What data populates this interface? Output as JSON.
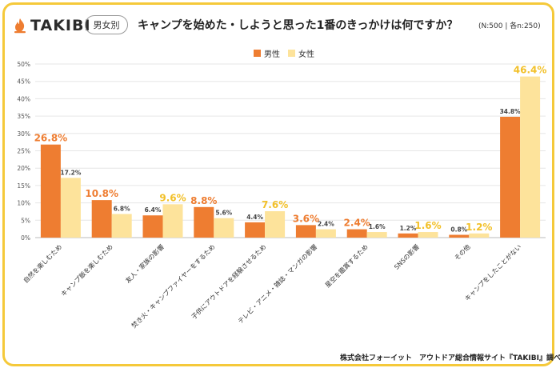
{
  "brand": {
    "name": "TAKIBI"
  },
  "badge": "男女別",
  "title": "キャンプを始めた・しようと思った1番のきっかけは何ですか？",
  "sample_note": "(N:500 | 各n:250)",
  "footer": "株式会社フォーイット　アウトドア総合情報サイト『TAKIBI』調べ",
  "colors": {
    "male": "#ee7d31",
    "female": "#fde39b",
    "male_label": "#ee7d31",
    "female_label": "#f2c029",
    "frame": "#f5c93a"
  },
  "chart_data": {
    "type": "bar",
    "categories": [
      "自然を楽しむため",
      "キャンプ飯を楽しむため",
      "友人・家族の影響",
      "焚き火・キャンプファイヤーをするため",
      "子供にアウトドアを経験させるため",
      "テレビ・アニメ・雑誌・マンガの影響",
      "星空を鑑賞するため",
      "SNSの影響",
      "その他",
      "キャンプをしたことがない"
    ],
    "series": [
      {
        "name": "男性",
        "values": [
          26.8,
          10.8,
          6.4,
          8.8,
          4.4,
          3.6,
          2.4,
          1.2,
          0.8,
          34.8
        ],
        "labels": [
          "26.8%",
          "10.8%",
          "6.4%",
          "8.8%",
          "4.4%",
          "3.6%",
          "2.4%",
          "1.2%",
          "0.8%",
          "34.8%"
        ],
        "highlight": [
          true,
          true,
          false,
          true,
          false,
          true,
          true,
          false,
          false,
          false
        ]
      },
      {
        "name": "女性",
        "values": [
          17.2,
          6.8,
          9.6,
          5.6,
          7.6,
          2.4,
          1.6,
          1.6,
          1.2,
          46.4
        ],
        "labels": [
          "17.2%",
          "6.8%",
          "9.6%",
          "5.6%",
          "7.6%",
          "2.4%",
          "1.6%",
          "1.6%",
          "1.2%",
          "46.4%"
        ],
        "highlight": [
          false,
          false,
          true,
          false,
          true,
          false,
          false,
          true,
          true,
          true
        ]
      }
    ],
    "yticks": [
      "0%",
      "5%",
      "10%",
      "15%",
      "20%",
      "25%",
      "30%",
      "35%",
      "40%",
      "45%",
      "50%"
    ],
    "ylim": [
      0,
      50
    ],
    "grid": true,
    "legend_position": "top-center"
  }
}
